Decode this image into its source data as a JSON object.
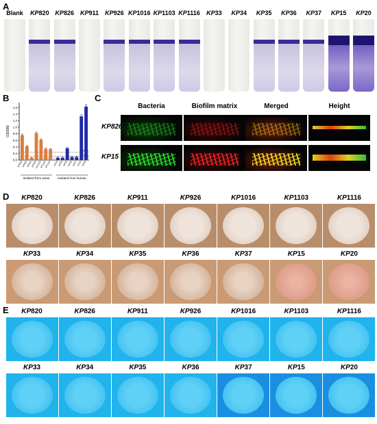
{
  "panels": {
    "a": "A",
    "b": "B",
    "c": "C",
    "d": "D",
    "e": "E"
  },
  "tubes": [
    {
      "prefix": "",
      "num": "Blank",
      "band": false,
      "film": false,
      "dark": false
    },
    {
      "prefix": "KP",
      "num": "820",
      "band": true,
      "film": true,
      "dark": false
    },
    {
      "prefix": "KP",
      "num": "826",
      "band": true,
      "film": true,
      "dark": false
    },
    {
      "prefix": "KP",
      "num": "911",
      "band": false,
      "film": false,
      "dark": false
    },
    {
      "prefix": "KP",
      "num": "926",
      "band": true,
      "film": true,
      "dark": false
    },
    {
      "prefix": "KP",
      "num": "1016",
      "band": true,
      "film": true,
      "dark": false
    },
    {
      "prefix": "KP",
      "num": "1103",
      "band": true,
      "film": true,
      "dark": false
    },
    {
      "prefix": "KP",
      "num": "1116",
      "band": true,
      "film": true,
      "dark": false
    },
    {
      "prefix": "KP",
      "num": "33",
      "band": false,
      "film": false,
      "dark": false
    },
    {
      "prefix": "KP",
      "num": "34",
      "band": false,
      "film": false,
      "dark": false
    },
    {
      "prefix": "KP",
      "num": "35",
      "band": true,
      "film": true,
      "dark": false
    },
    {
      "prefix": "KP",
      "num": "36",
      "band": true,
      "film": true,
      "dark": false
    },
    {
      "prefix": "KP",
      "num": "37",
      "band": true,
      "film": true,
      "dark": false
    },
    {
      "prefix": "KP",
      "num": "15",
      "band": true,
      "film": true,
      "dark": true
    },
    {
      "prefix": "KP",
      "num": "20",
      "band": true,
      "film": true,
      "dark": true
    }
  ],
  "chart_data": {
    "type": "bar",
    "ylabel": "OD590",
    "ylim": [
      0,
      1.75
    ],
    "yticks": [
      "0.0",
      "0.2",
      "0.4",
      "0.6",
      "0.8",
      "1.0",
      "1.2",
      "1.4",
      "1.6"
    ],
    "categories": [
      "KP820",
      "KP826",
      "KP911",
      "KP926",
      "KP1016",
      "KP1103",
      "KP1116",
      "KP33",
      "KP34",
      "KP35",
      "KP36",
      "KP37",
      "KP15",
      "KP20"
    ],
    "values": [
      0.76,
      0.42,
      0.06,
      0.82,
      0.62,
      0.34,
      0.33,
      0.07,
      0.07,
      0.36,
      0.09,
      0.09,
      1.33,
      1.63
    ],
    "bar_colors": [
      "#e07b39",
      "#e07b39",
      "#e07b39",
      "#e07b39",
      "#e07b39",
      "#e07b39",
      "#e07b39",
      "#1f2aa6",
      "#1f2aa6",
      "#1f2aa6",
      "#1f2aa6",
      "#1f2aa6",
      "#1f2aa6",
      "#1f2aa6"
    ],
    "reference_lines": [
      {
        "label": "4ODc",
        "value": 0.24
      },
      {
        "label": "2ODc",
        "value": 0.12
      },
      {
        "label": "ODc",
        "value": 0.06
      }
    ],
    "group_labels": [
      "Isolated from avian",
      "Isolated from human"
    ]
  },
  "confocal": {
    "headers": [
      "Bacteria",
      "Biofilm matrix",
      "Merged",
      "Height"
    ],
    "rows": [
      "KP826",
      "KP15"
    ]
  },
  "panel_d": {
    "row1": [
      "KP820",
      "KP826",
      "KP911",
      "KP926",
      "KP1016",
      "KP1103",
      "KP1116"
    ],
    "row2": [
      "KP33",
      "KP34",
      "KP35",
      "KP36",
      "KP37",
      "KP15",
      "KP20"
    ],
    "plate_color": "#b88e6a",
    "colony_color": "#efe4dc"
  },
  "panel_e": {
    "row1": [
      "KP820",
      "KP826",
      "KP911",
      "KP926",
      "KP1016",
      "KP1103",
      "KP1116"
    ],
    "row2": [
      "KP33",
      "KP34",
      "KP35",
      "KP36",
      "KP37",
      "KP15",
      "KP20"
    ],
    "plate_color": "#18a8e8",
    "colony_color": "#5fd0f6"
  }
}
